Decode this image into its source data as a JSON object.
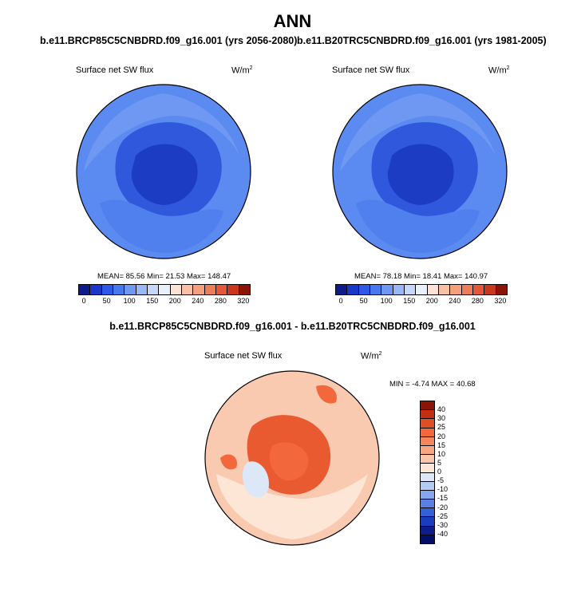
{
  "title": "ANN",
  "left_panel": {
    "case": "b.e11.BRCP85C5CNBDRD.f09_g16.001 (yrs 2056-2080)",
    "variable": "Surface net SW flux",
    "units": "W/m",
    "units_exp": "2",
    "stats": "MEAN=  85.56  Min=  21.53  Max= 148.47"
  },
  "right_panel": {
    "case": "b.e11.B20TRC5CNBDRD.f09_g16.001 (yrs 1981-2005)",
    "variable": "Surface net SW flux",
    "units": "W/m",
    "units_exp": "2",
    "stats": "MEAN=  78.18  Min=  18.41  Max= 140.97"
  },
  "diff_panel": {
    "case": "b.e11.BRCP85C5CNBDRD.f09_g16.001 - b.e11.B20TRC5CNBDRD.f09_g16.001",
    "variable": "Surface net SW flux",
    "units": "W/m",
    "units_exp": "2",
    "stats": "MIN =  -4.74 MAX =  40.68"
  },
  "abs_colorbar": {
    "labels": [
      "0",
      "50",
      "100",
      "150",
      "200",
      "240",
      "280",
      "320"
    ],
    "colors": [
      "#0c1c8c",
      "#1a38c8",
      "#2e58e6",
      "#4878ee",
      "#6f98f2",
      "#98b8f6",
      "#c4d8fa",
      "#e8f0fc",
      "#fbe2d4",
      "#f8c0a4",
      "#f4a07c",
      "#ee7c58",
      "#e25838",
      "#c8381c",
      "#8c1406"
    ]
  },
  "diff_colorbar": {
    "labels": [
      "40",
      "30",
      "25",
      "20",
      "15",
      "10",
      "5",
      "0",
      "-5",
      "-10",
      "-15",
      "-20",
      "-25",
      "-30",
      "-40"
    ],
    "colors": [
      "#8c1406",
      "#c42e12",
      "#e04e26",
      "#f2683c",
      "#f4865c",
      "#f7a684",
      "#f9c6ac",
      "#fde6d6",
      "#dce8f8",
      "#b4ccf4",
      "#86a6ee",
      "#5a80e6",
      "#3460da",
      "#1c3cc0",
      "#0c1c8c",
      "#060c6a"
    ]
  },
  "colors": {
    "coast": "#000000",
    "abs_ocean": "#4f80ee",
    "abs_land": "#2f58dc",
    "abs_pole": "#1c3cc4",
    "diff_bg": "#f9c9b0",
    "diff_core": "#e95a30"
  }
}
